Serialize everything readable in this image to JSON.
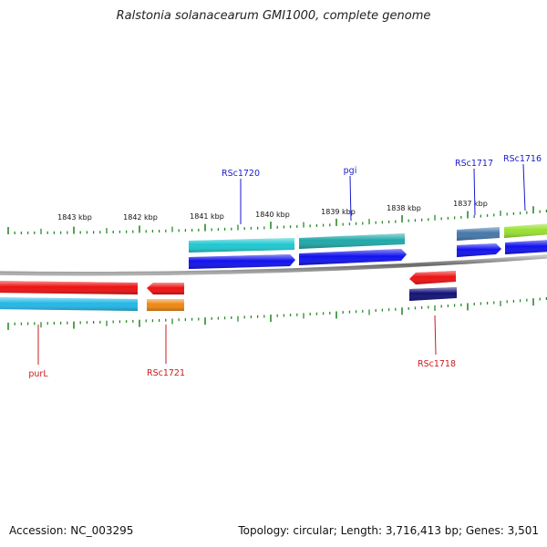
{
  "title": "Ralstonia solanacearum GMI1000, complete genome",
  "footer": {
    "accession": "Accession: NC_003295",
    "summary": "Topology: circular; Length: 3,716,413 bp; Genes: 3,501"
  },
  "scale_labels": [
    "1843 kbp",
    "1842 kbp",
    "1841 kbp",
    "1840 kbp",
    "1839 kbp",
    "1838 kbp",
    "1837 kbp"
  ],
  "gene_labels": {
    "forward": [
      "RSc1720",
      "pgi",
      "RSc1717",
      "RSc1716"
    ],
    "reverse": [
      "purL",
      "RSc1721",
      "RSc1718"
    ]
  },
  "colors": {
    "forward_label": "#1a1acc",
    "reverse_label": "#cc1a1a",
    "tick": "#2a8a2a",
    "backbone": "#8a8a8a",
    "red": "#ee1111",
    "cyan": "#1fc8d0",
    "blue": "#1111ee",
    "orange": "#ee8811",
    "navy": "#111177",
    "steel": "#4477aa",
    "lime": "#99e033",
    "sky": "#22b8e8"
  }
}
